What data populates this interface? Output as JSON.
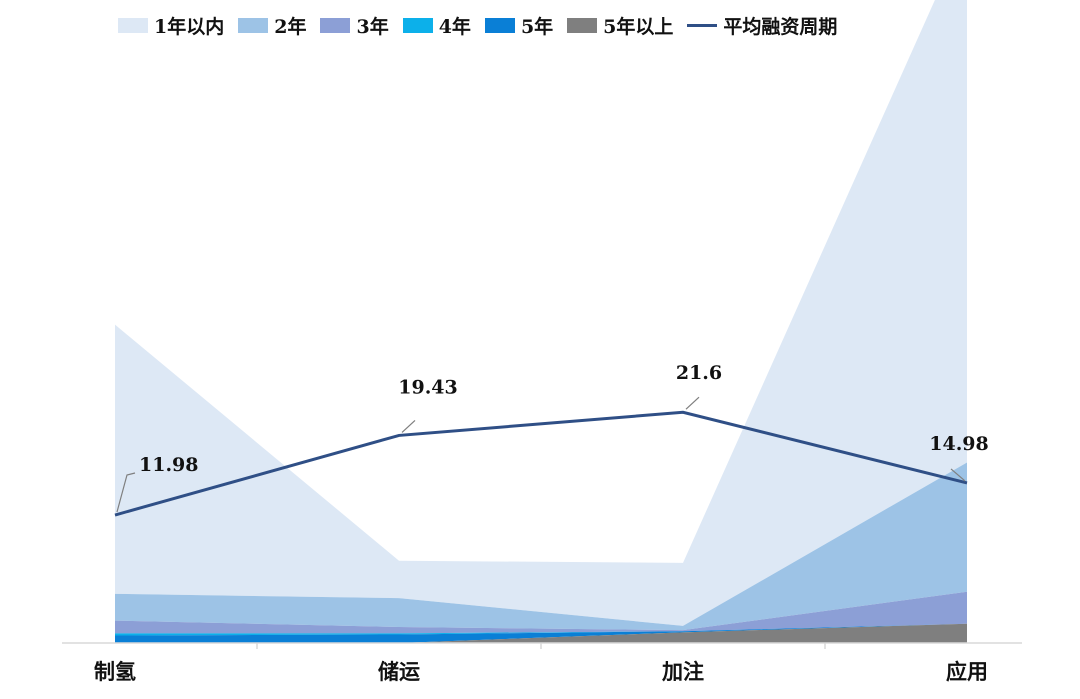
{
  "chart_data": {
    "type": "area",
    "categories": [
      "制氢",
      "储运",
      "加注",
      "应用"
    ],
    "series": [
      {
        "name": "5年以上",
        "color": "#7f7f7f",
        "values": [
          0.0,
          0.0,
          1.0,
          1.8
        ]
      },
      {
        "name": "5年",
        "color": "#0a7fd6",
        "values": [
          0.7,
          0.8,
          0.1,
          0.0
        ]
      },
      {
        "name": "4年",
        "color": "#0cb0ea",
        "values": [
          0.2,
          0.1,
          0.0,
          0.0
        ]
      },
      {
        "name": "3年",
        "color": "#8c9fd6",
        "values": [
          1.2,
          0.6,
          0.1,
          3.0
        ]
      },
      {
        "name": "2年",
        "color": "#9dc3e6",
        "values": [
          2.5,
          2.7,
          0.4,
          12.1
        ]
      },
      {
        "name": "1年以内",
        "color": "#dde8f5",
        "values": [
          25.2,
          3.5,
          5.9,
          50.0
        ]
      }
    ],
    "line": {
      "name": "平均融资周期",
      "color": "#2f4f86",
      "values": [
        11.98,
        19.43,
        21.6,
        14.98
      ]
    },
    "data_labels": [
      "11.98",
      "19.43",
      "21.6",
      "14.98"
    ],
    "legend": {
      "position": "top",
      "order": [
        "1年以内",
        "2年",
        "3年",
        "4年",
        "5年",
        "5年以上",
        "平均融资周期"
      ]
    },
    "ylim": [
      0,
      60
    ],
    "grid": false,
    "xlabel": "",
    "ylabel": "",
    "title": ""
  }
}
